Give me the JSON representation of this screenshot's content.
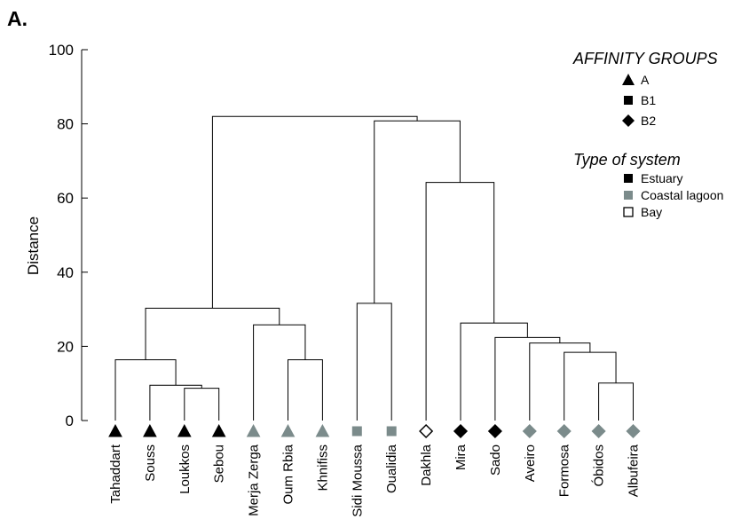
{
  "panel_label": "A.",
  "colors": {
    "estuary": "#000000",
    "lagoon": "#7b8b8b",
    "bay": "#ffffff",
    "line": "#000000"
  },
  "legend": {
    "affinity_title": "AFFINITY GROUPS",
    "affinity_items": [
      {
        "label": "A",
        "marker": "triangle"
      },
      {
        "label": "B1",
        "marker": "square"
      },
      {
        "label": "B2",
        "marker": "diamond"
      }
    ],
    "system_title": "Type of system",
    "system_items": [
      {
        "label": "Estuary",
        "color": "#000000"
      },
      {
        "label": "Coastal lagoon",
        "color": "#7b8b8b"
      },
      {
        "label": "Bay",
        "color": "#ffffff"
      }
    ]
  },
  "chart_data": {
    "type": "dendrogram",
    "ylabel": "Distance",
    "ylim": [
      0,
      100
    ],
    "yticks": [
      0,
      20,
      40,
      60,
      80,
      100
    ],
    "leaves": [
      {
        "name": "Tahaddart",
        "group": "A",
        "system": "estuary"
      },
      {
        "name": "Souss",
        "group": "A",
        "system": "estuary"
      },
      {
        "name": "Loukkos",
        "group": "A",
        "system": "estuary"
      },
      {
        "name": "Sebou",
        "group": "A",
        "system": "estuary"
      },
      {
        "name": "Merja Zerga",
        "group": "A",
        "system": "lagoon"
      },
      {
        "name": "Oum Rbia",
        "group": "A",
        "system": "lagoon"
      },
      {
        "name": "Khnifiss",
        "group": "A",
        "system": "lagoon"
      },
      {
        "name": "Sidi Moussa",
        "group": "B1",
        "system": "lagoon"
      },
      {
        "name": "Oualidia",
        "group": "B1",
        "system": "lagoon"
      },
      {
        "name": "Dakhla",
        "group": "B2",
        "system": "bay"
      },
      {
        "name": "Mira",
        "group": "B2",
        "system": "estuary"
      },
      {
        "name": "Sado",
        "group": "B2",
        "system": "estuary"
      },
      {
        "name": "Aveiro",
        "group": "B2",
        "system": "lagoon"
      },
      {
        "name": "Formosa",
        "group": "B2",
        "system": "lagoon"
      },
      {
        "name": "Óbidos",
        "group": "B2",
        "system": "lagoon"
      },
      {
        "name": "Albufeira",
        "group": "B2",
        "system": "lagoon"
      }
    ],
    "merges": [
      {
        "id": "c1",
        "left": 2,
        "right": 3,
        "height": 8.7
      },
      {
        "id": "c2",
        "left": 1,
        "right": "c1",
        "height": 9.5
      },
      {
        "id": "c3",
        "left": 0,
        "right": "c2",
        "height": 16.4
      },
      {
        "id": "c4",
        "left": 5,
        "right": 6,
        "height": 16.4
      },
      {
        "id": "c5",
        "left": 4,
        "right": "c4",
        "height": 25.8
      },
      {
        "id": "c6",
        "left": "c3",
        "right": "c5",
        "height": 30.3
      },
      {
        "id": "c7",
        "left": 7,
        "right": 8,
        "height": 31.6
      },
      {
        "id": "c8",
        "left": 14,
        "right": 15,
        "height": 10.1
      },
      {
        "id": "c9",
        "left": 13,
        "right": "c8",
        "height": 18.4
      },
      {
        "id": "c10",
        "left": 12,
        "right": "c9",
        "height": 20.9
      },
      {
        "id": "c11",
        "left": 11,
        "right": "c10",
        "height": 22.4
      },
      {
        "id": "c12",
        "left": 10,
        "right": "c11",
        "height": 26.3
      },
      {
        "id": "c13",
        "left": 9,
        "right": "c12",
        "height": 64.2
      },
      {
        "id": "c14",
        "left": "c7",
        "right": "c13",
        "height": 80.8
      },
      {
        "id": "c15",
        "left": "c6",
        "right": "c14",
        "height": 82.0
      }
    ]
  }
}
